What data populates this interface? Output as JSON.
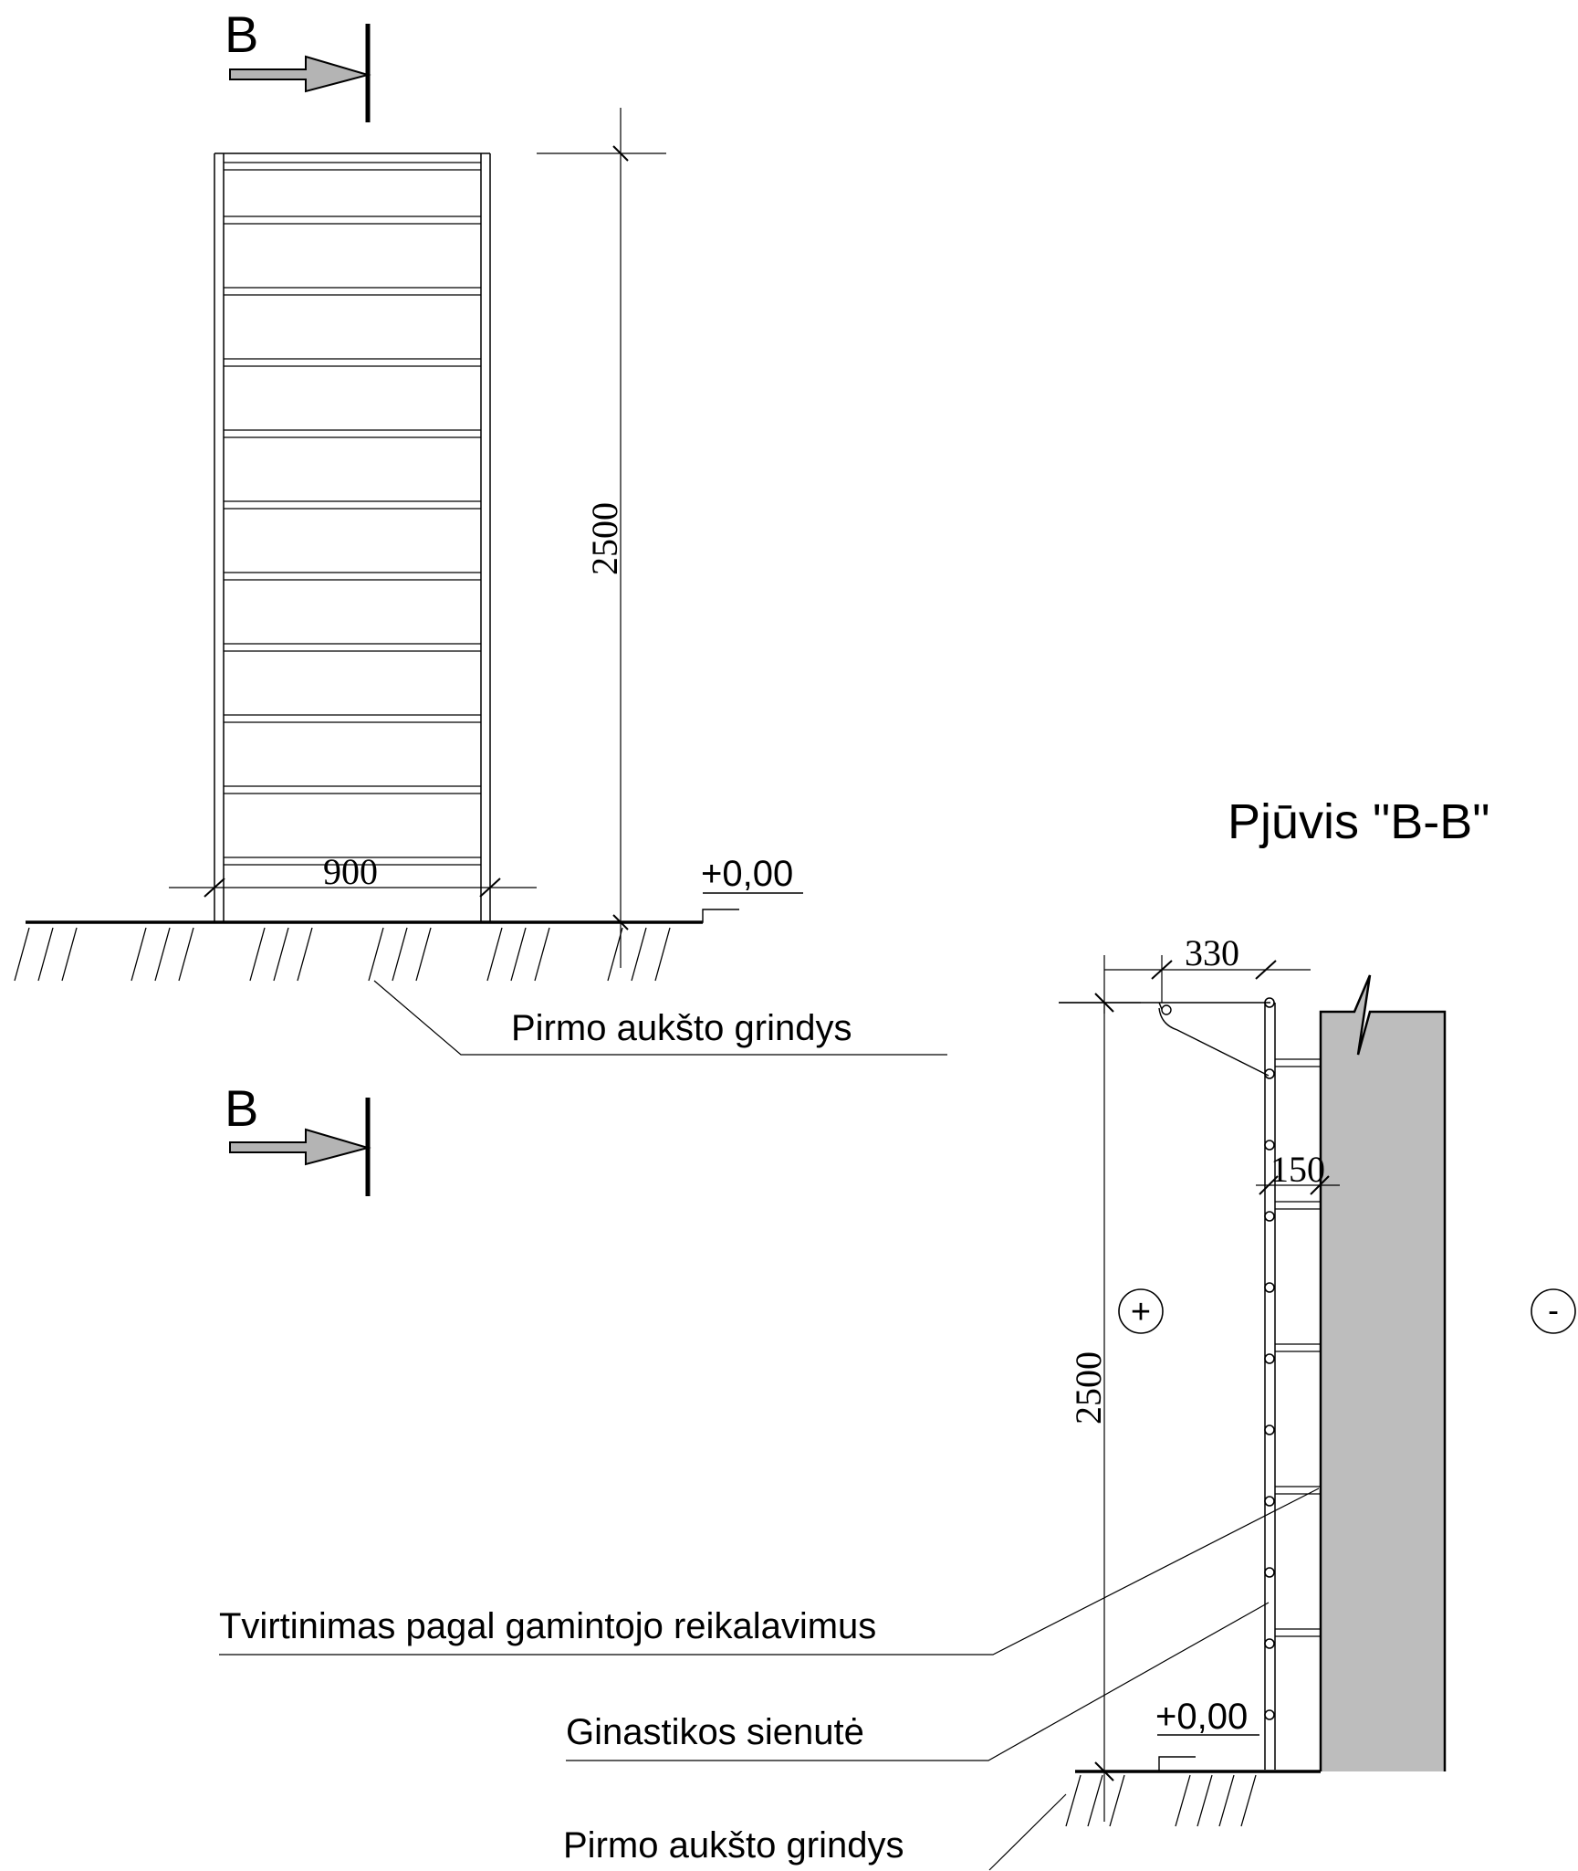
{
  "section_marks": {
    "upper": "B",
    "lower": "B"
  },
  "elevation": {
    "height_dim": "2500",
    "width_dim": "900",
    "level_mark": "+0,00",
    "floor_label": "Pirmo aukšto grindys"
  },
  "section": {
    "title": "Pjūvis \"B-B\"",
    "depth_dim": "330",
    "offset_dim": "150",
    "height_dim": "2500",
    "level_mark": "+0,00",
    "side_plus": "+",
    "side_minus": "-",
    "fixing_label": "Tvirtinimas pagal gamintojo reikalavimus",
    "wallbars_label": "Ginastikos sienutė",
    "floor_label": "Pirmo aukšto grindys"
  },
  "colors": {
    "line": "#000000",
    "wall_fill": "#bdbdbd",
    "arrow_fill": "#b4b4b4"
  }
}
